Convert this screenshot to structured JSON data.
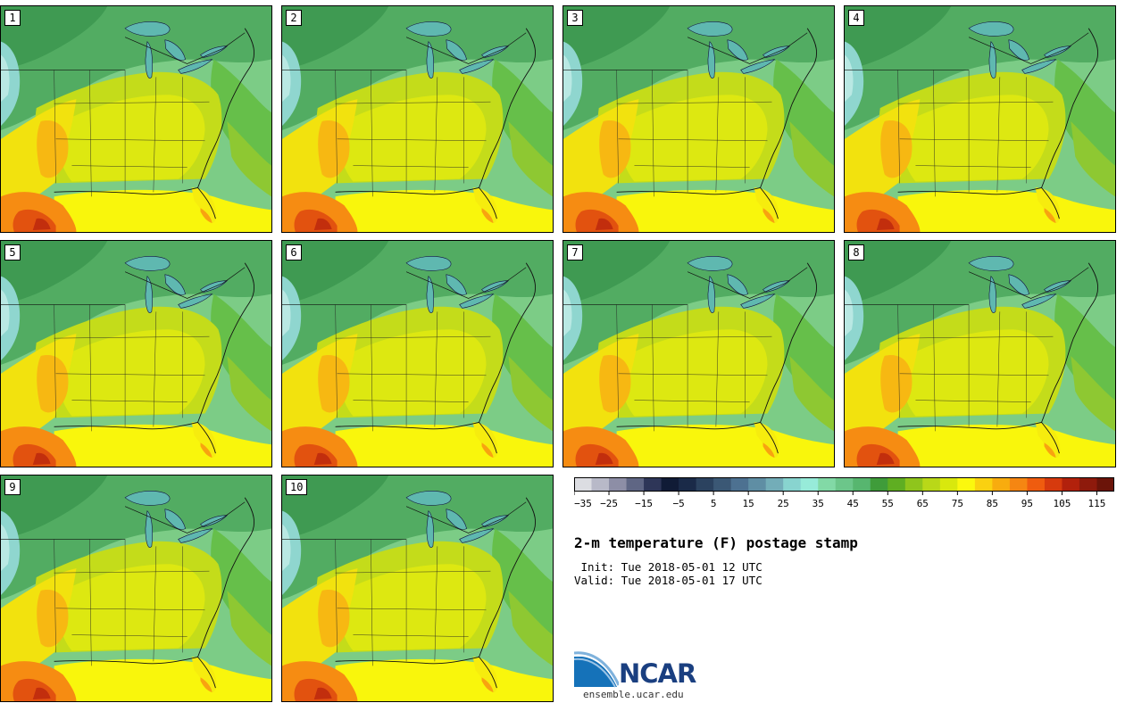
{
  "title": "2-m temperature (F) postage stamp",
  "init": " Init: Tue 2018-05-01 12 UTC",
  "valid": "Valid: Tue 2018-05-01 17 UTC",
  "members": [
    "1",
    "2",
    "3",
    "4",
    "5",
    "6",
    "7",
    "8",
    "9",
    "10"
  ],
  "colorbar": {
    "colors": [
      "#dcdde2",
      "#b8b9c8",
      "#8d8ea6",
      "#5f6684",
      "#2e3658",
      "#101b36",
      "#1a2a48",
      "#2b425f",
      "#3b5875",
      "#4d7191",
      "#5f8ea4",
      "#73adb8",
      "#88d4cf",
      "#97ebd9",
      "#82d9a6",
      "#6cc68a",
      "#57b66f",
      "#3f9c3a",
      "#5fae22",
      "#8fc51c",
      "#b9d818",
      "#d9e80d",
      "#fbf80e",
      "#fad110",
      "#f8ac0e",
      "#f58612",
      "#ef5c0f",
      "#d63a0e",
      "#b2210c",
      "#8e1a0c",
      "#6b1409"
    ],
    "tick_labels": [
      "−35",
      "−25",
      "−15",
      "−5",
      "5",
      "15",
      "25",
      "35",
      "45",
      "55",
      "65",
      "75",
      "85",
      "95",
      "105",
      "115"
    ]
  },
  "logo": {
    "text": "NCAR",
    "url": "ensemble.ucar.edu"
  }
}
